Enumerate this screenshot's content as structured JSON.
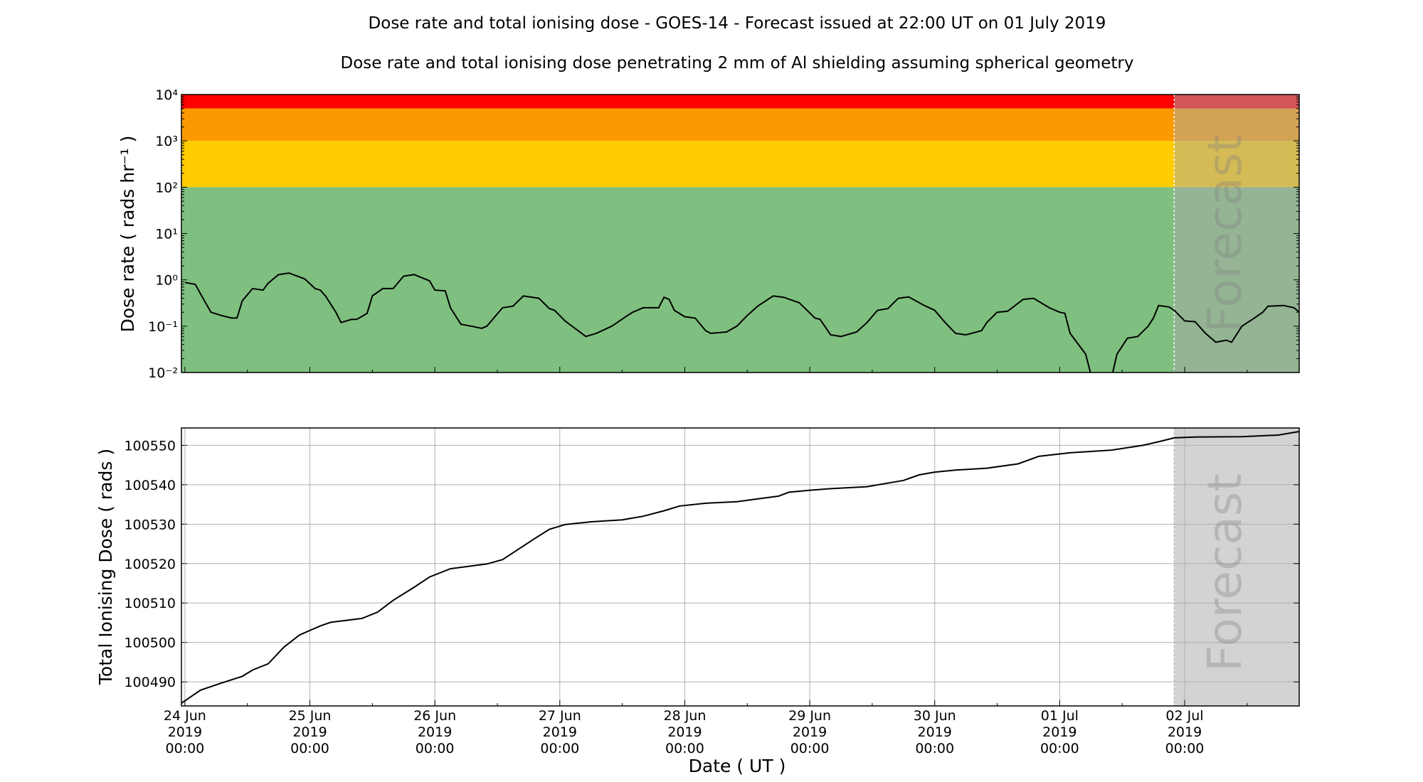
{
  "title": "Dose rate and total ionising dose - GOES-14 - Forecast issued at 22:00 UT on 01 July 2019",
  "subtitle": "Dose rate and total ionising dose penetrating 2 mm of Al shielding assuming spherical geometry",
  "forecast_label": "Forecast",
  "colors": {
    "red": "#ff0000",
    "orange": "#fb9a00",
    "yellow": "#ffcc00",
    "green": "#7fbf7f",
    "forecast_overlay_top": "rgba(169,169,169,0.5)",
    "forecast_bg_bottom": "#d3d3d3",
    "line": "#000000",
    "forecast_divider": "#ffffff"
  },
  "chart_data": [
    {
      "type": "line",
      "ylabel": "Dose rate ( rads hr⁻¹ )",
      "yscale": "log",
      "ylim": [
        0.01,
        10000
      ],
      "xlim": [
        "2019-06-23 23:20",
        "2019-07-02 22:00"
      ],
      "forecast_start": "2019-07-01 22:00",
      "yticks": [
        {
          "value": 0.01,
          "label": "10⁻²"
        },
        {
          "value": 0.1,
          "label": "10⁻¹"
        },
        {
          "value": 1,
          "label": "10⁰"
        },
        {
          "value": 10,
          "label": "10¹"
        },
        {
          "value": 100,
          "label": "10²"
        },
        {
          "value": 1000,
          "label": "10³"
        },
        {
          "value": 10000,
          "label": "10⁴"
        }
      ],
      "bands": [
        {
          "from": 5000,
          "to": 10000,
          "color": "#ff0000"
        },
        {
          "from": 1000,
          "to": 5000,
          "color": "#fb9a00"
        },
        {
          "from": 100,
          "to": 1000,
          "color": "#ffcc00"
        },
        {
          "from": 0.01,
          "to": 100,
          "color": "#7fbf7f"
        }
      ],
      "grid": false,
      "series": [
        {
          "x": [
            "2019-06-24 00:00",
            "2019-06-24 02:00",
            "2019-06-24 03:00",
            "2019-06-24 05:00",
            "2019-06-24 07:00",
            "2019-06-24 09:00",
            "2019-06-24 10:00",
            "2019-06-24 11:00",
            "2019-06-24 13:00",
            "2019-06-24 15:00",
            "2019-06-24 16:00",
            "2019-06-24 18:00",
            "2019-06-24 20:00",
            "2019-06-24 23:00",
            "2019-06-25 01:00",
            "2019-06-25 02:00",
            "2019-06-25 03:00",
            "2019-06-25 05:00",
            "2019-06-25 06:00",
            "2019-06-25 08:00",
            "2019-06-25 09:00",
            "2019-06-25 11:00",
            "2019-06-25 12:00",
            "2019-06-25 14:00",
            "2019-06-25 16:00",
            "2019-06-25 18:00",
            "2019-06-25 20:00",
            "2019-06-25 23:00",
            "2019-06-26 00:00",
            "2019-06-26 02:00",
            "2019-06-26 03:00",
            "2019-06-26 05:00",
            "2019-06-26 07:00",
            "2019-06-26 09:00",
            "2019-06-26 10:00",
            "2019-06-26 13:00",
            "2019-06-26 15:00",
            "2019-06-26 16:00",
            "2019-06-26 17:00",
            "2019-06-26 20:00",
            "2019-06-26 22:00",
            "2019-06-26 23:00",
            "2019-06-27 01:00",
            "2019-06-27 05:00",
            "2019-06-27 07:00",
            "2019-06-27 10:00",
            "2019-06-27 13:00",
            "2019-06-27 14:00",
            "2019-06-27 16:00",
            "2019-06-27 19:00",
            "2019-06-27 20:00",
            "2019-06-27 21:00",
            "2019-06-27 22:00",
            "2019-06-28 00:00",
            "2019-06-28 02:00",
            "2019-06-28 04:00",
            "2019-06-28 05:00",
            "2019-06-28 08:00",
            "2019-06-28 10:00",
            "2019-06-28 12:00",
            "2019-06-28 14:00",
            "2019-06-28 17:00",
            "2019-06-28 19:00",
            "2019-06-28 22:00",
            "2019-06-29 01:00",
            "2019-06-29 02:00",
            "2019-06-29 04:00",
            "2019-06-29 06:00",
            "2019-06-29 09:00",
            "2019-06-29 11:00",
            "2019-06-29 13:00",
            "2019-06-29 15:00",
            "2019-06-29 17:00",
            "2019-06-29 19:00",
            "2019-06-29 22:00",
            "2019-06-30 00:00",
            "2019-06-30 02:00",
            "2019-06-30 04:00",
            "2019-06-30 06:00",
            "2019-06-30 09:00",
            "2019-06-30 10:00",
            "2019-06-30 12:00",
            "2019-06-30 14:00",
            "2019-06-30 17:00",
            "2019-06-30 19:00",
            "2019-06-30 22:00",
            "2019-07-01 00:00",
            "2019-07-01 01:00",
            "2019-07-01 02:00",
            "2019-07-01 05:00",
            "2019-07-01 06:00",
            "2019-07-01 10:00",
            "2019-07-01 11:00",
            "2019-07-01 13:00",
            "2019-07-01 15:00",
            "2019-07-01 17:00",
            "2019-07-01 18:00",
            "2019-07-01 19:00",
            "2019-07-01 21:00",
            "2019-07-01 22:00",
            "2019-07-02 00:00",
            "2019-07-02 02:00",
            "2019-07-02 04:00",
            "2019-07-02 06:00",
            "2019-07-02 08:00",
            "2019-07-02 09:00",
            "2019-07-02 11:00",
            "2019-07-02 13:00",
            "2019-07-02 15:00",
            "2019-07-02 16:00",
            "2019-07-02 19:00",
            "2019-07-02 21:00",
            "2019-07-02 22:00"
          ],
          "y": [
            0.88,
            0.8,
            0.5,
            0.2,
            0.17,
            0.15,
            0.15,
            0.35,
            0.65,
            0.6,
            0.85,
            1.3,
            1.4,
            1.05,
            0.65,
            0.6,
            0.45,
            0.2,
            0.12,
            0.14,
            0.14,
            0.19,
            0.45,
            0.65,
            0.65,
            1.2,
            1.3,
            0.95,
            0.6,
            0.58,
            0.25,
            0.11,
            0.1,
            0.09,
            0.1,
            0.25,
            0.27,
            0.35,
            0.45,
            0.4,
            0.24,
            0.22,
            0.13,
            0.06,
            0.07,
            0.1,
            0.17,
            0.2,
            0.25,
            0.25,
            0.42,
            0.38,
            0.22,
            0.16,
            0.15,
            0.08,
            0.07,
            0.075,
            0.1,
            0.17,
            0.27,
            0.45,
            0.42,
            0.32,
            0.15,
            0.14,
            0.065,
            0.06,
            0.075,
            0.12,
            0.22,
            0.24,
            0.4,
            0.43,
            0.28,
            0.22,
            0.12,
            0.07,
            0.065,
            0.08,
            0.12,
            0.2,
            0.21,
            0.38,
            0.4,
            0.25,
            0.2,
            0.19,
            0.07,
            0.025,
            0.009,
            0.008,
            0.025,
            0.055,
            0.06,
            0.1,
            0.15,
            0.28,
            0.26,
            0.22,
            0.13,
            0.125,
            0.07,
            0.045,
            0.05,
            0.045,
            0.1,
            0.14,
            0.2,
            0.27,
            0.28,
            0.25,
            0.2
          ]
        }
      ]
    },
    {
      "type": "line",
      "xlabel": "Date ( UT )",
      "ylabel": "Total Ionising Dose ( rads )",
      "ylim": [
        100483.9,
        100554.4
      ],
      "xlim": [
        "2019-06-23 23:20",
        "2019-07-02 22:00"
      ],
      "forecast_start": "2019-07-01 22:00",
      "yticks": [
        100490,
        100500,
        100510,
        100520,
        100530,
        100540,
        100550
      ],
      "grid": true,
      "xticks": [
        {
          "date": "2019-06-24 00:00",
          "lines": [
            "24 Jun",
            "2019",
            "00:00"
          ]
        },
        {
          "date": "2019-06-25 00:00",
          "lines": [
            "25 Jun",
            "2019",
            "00:00"
          ]
        },
        {
          "date": "2019-06-26 00:00",
          "lines": [
            "26 Jun",
            "2019",
            "00:00"
          ]
        },
        {
          "date": "2019-06-27 00:00",
          "lines": [
            "27 Jun",
            "2019",
            "00:00"
          ]
        },
        {
          "date": "2019-06-28 00:00",
          "lines": [
            "28 Jun",
            "2019",
            "00:00"
          ]
        },
        {
          "date": "2019-06-29 00:00",
          "lines": [
            "29 Jun",
            "2019",
            "00:00"
          ]
        },
        {
          "date": "2019-06-30 00:00",
          "lines": [
            "30 Jun",
            "2019",
            "00:00"
          ]
        },
        {
          "date": "2019-07-01 00:00",
          "lines": [
            "01 Jul",
            "2019",
            "00:00"
          ]
        },
        {
          "date": "2019-07-02 00:00",
          "lines": [
            "02 Jul",
            "2019",
            "00:00"
          ]
        }
      ],
      "series": [
        {
          "x": [
            "2019-06-23 23:20",
            "2019-06-24 03:00",
            "2019-06-24 07:00",
            "2019-06-24 11:00",
            "2019-06-24 13:00",
            "2019-06-24 16:00",
            "2019-06-24 19:00",
            "2019-06-24 22:00",
            "2019-06-25 02:00",
            "2019-06-25 04:00",
            "2019-06-25 10:00",
            "2019-06-25 13:00",
            "2019-06-25 16:00",
            "2019-06-25 20:00",
            "2019-06-25 23:00",
            "2019-06-26 03:00",
            "2019-06-26 10:00",
            "2019-06-26 13:00",
            "2019-06-26 16:00",
            "2019-06-26 19:00",
            "2019-06-26 22:00",
            "2019-06-27 01:00",
            "2019-06-27 06:00",
            "2019-06-27 12:00",
            "2019-06-27 16:00",
            "2019-06-27 20:00",
            "2019-06-27 23:00",
            "2019-06-28 04:00",
            "2019-06-28 10:00",
            "2019-06-28 14:00",
            "2019-06-28 18:00",
            "2019-06-28 20:00",
            "2019-06-29 00:00",
            "2019-06-29 04:00",
            "2019-06-29 11:00",
            "2019-06-29 14:00",
            "2019-06-29 18:00",
            "2019-06-29 21:00",
            "2019-06-30 00:00",
            "2019-06-30 04:00",
            "2019-06-30 10:00",
            "2019-06-30 16:00",
            "2019-06-30 20:00",
            "2019-07-01 02:00",
            "2019-07-01 10:00",
            "2019-07-01 16:00",
            "2019-07-01 19:00",
            "2019-07-01 22:00",
            "2019-07-02 02:00",
            "2019-07-02 11:00",
            "2019-07-02 18:00",
            "2019-07-02 22:00"
          ],
          "y": [
            100484.6,
            100487.9,
            100489.7,
            100491.4,
            100493.0,
            100494.6,
            100498.8,
            100501.9,
            100504.2,
            100505.1,
            100506.1,
            100507.7,
            100510.7,
            100514.0,
            100516.6,
            100518.7,
            100519.9,
            100521.0,
            100523.6,
            100526.2,
            100528.7,
            100529.9,
            100530.6,
            100531.1,
            100532.0,
            100533.4,
            100534.6,
            100535.3,
            100535.7,
            100536.4,
            100537.1,
            100538.1,
            100538.6,
            100539.0,
            100539.5,
            100540.2,
            100541.1,
            100542.5,
            100543.2,
            100543.7,
            100544.2,
            100545.3,
            100547.2,
            100548.1,
            100548.8,
            100550.0,
            100550.9,
            100551.9,
            100552.1,
            100552.2,
            100552.6,
            100553.5
          ]
        }
      ]
    }
  ]
}
